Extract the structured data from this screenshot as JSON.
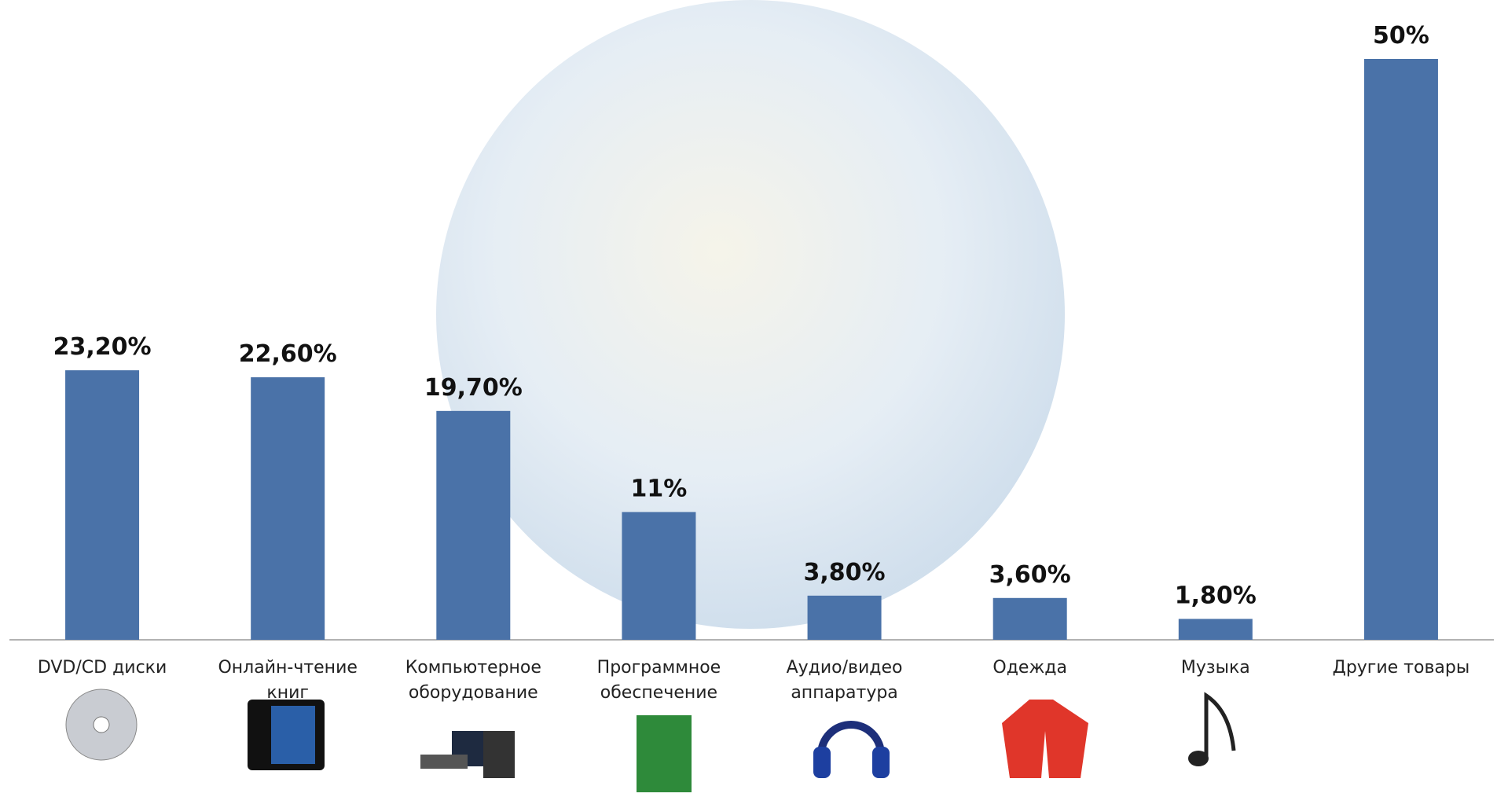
{
  "chart_data": {
    "type": "bar",
    "categories": [
      "DVD/CD диски",
      "Онлайн-чтение книг",
      "Компьютерное оборудование",
      "Программное обеспечение",
      "Аудио/видео аппаратура",
      "Одежда",
      "Музыка",
      "Другие товары"
    ],
    "values": [
      23.2,
      22.6,
      19.7,
      11,
      3.8,
      3.6,
      1.8,
      50
    ],
    "value_labels": [
      "23,20%",
      "22,60%",
      "19,70%",
      "11%",
      "3,80%",
      "3,60%",
      "1,80%",
      "50%"
    ],
    "color": "#4a72a8"
  }
}
